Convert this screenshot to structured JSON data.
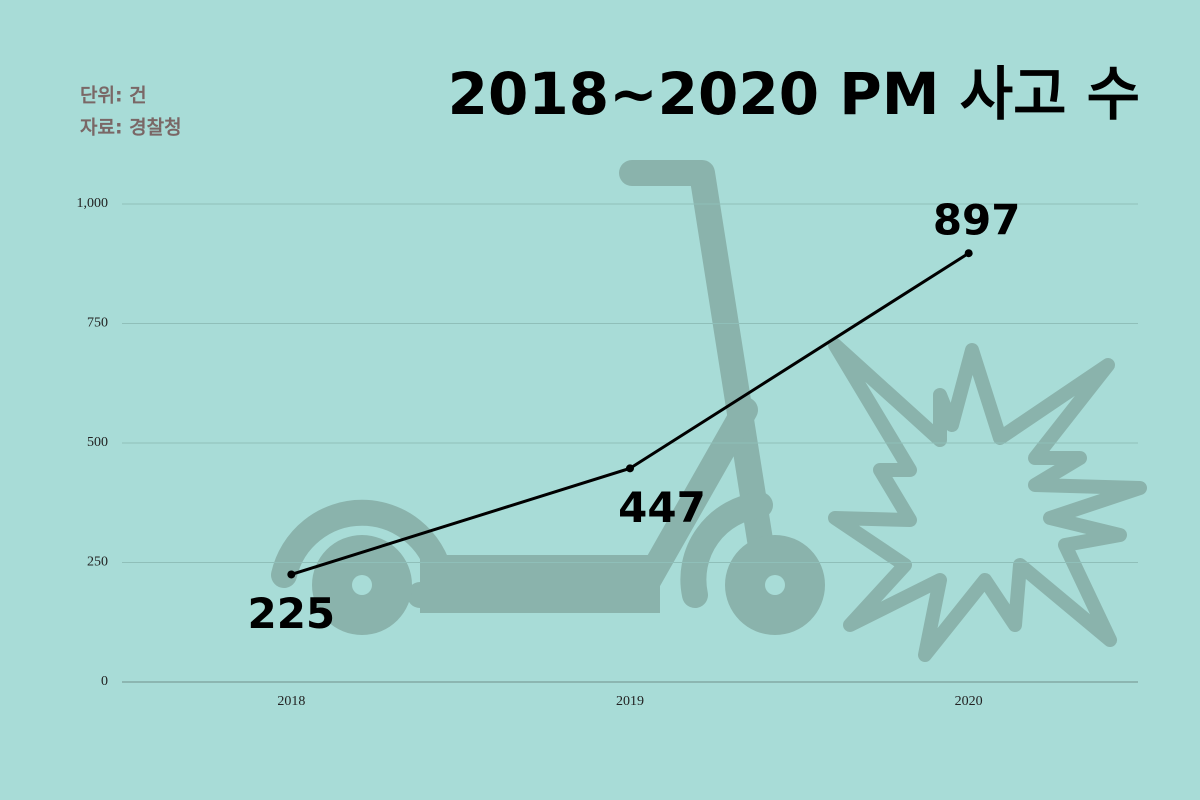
{
  "chart_data": {
    "type": "line",
    "title": "2018~2020 PM 사고 수",
    "annotations": [
      "단위: 건",
      "자료: 경찰청"
    ],
    "categories": [
      "2018",
      "2019",
      "2020"
    ],
    "values": [
      225,
      447,
      897
    ],
    "color": "#000000",
    "ylim": [
      0,
      1000
    ],
    "yticks": [
      0,
      250,
      500,
      750,
      {
        "value": 1000,
        "label": "1,000"
      }
    ],
    "grid": true
  }
}
